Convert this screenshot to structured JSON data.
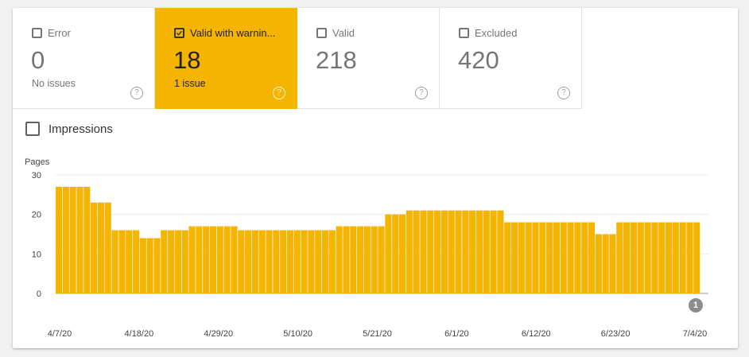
{
  "tiles": [
    {
      "label": "Error",
      "value": "0",
      "sub": "No issues",
      "active": false
    },
    {
      "label": "Valid with warnin...",
      "value": "18",
      "sub": "1 issue",
      "active": true
    },
    {
      "label": "Valid",
      "value": "218",
      "sub": "",
      "active": false
    },
    {
      "label": "Excluded",
      "value": "420",
      "sub": "",
      "active": false
    }
  ],
  "help_glyph": "?",
  "impressions_label": "Impressions",
  "annotation_marker": "1",
  "colors": {
    "accent": "#f4b400",
    "grid": "#ececec",
    "axis": "#9e9e9e"
  },
  "chart_data": {
    "type": "bar",
    "ylabel": "Pages",
    "ylim": [
      0,
      30
    ],
    "yticks": [
      "0",
      "10",
      "20",
      "30"
    ],
    "xticks": [
      "4/7/20",
      "4/18/20",
      "4/29/20",
      "5/10/20",
      "5/21/20",
      "6/1/20",
      "6/12/20",
      "6/23/20",
      "7/4/20"
    ],
    "series": [
      {
        "values": [
          27,
          27,
          27,
          27,
          27,
          23,
          23,
          23,
          16,
          16,
          16,
          16,
          14,
          14,
          14,
          16,
          16,
          16,
          16,
          17,
          17,
          17,
          17,
          17,
          17,
          17,
          16,
          16,
          16,
          16,
          16,
          16,
          16,
          16,
          16,
          16,
          16,
          16,
          16,
          16,
          17,
          17,
          17,
          17,
          17,
          17,
          17,
          20,
          20,
          20,
          21,
          21,
          21,
          21,
          21,
          21,
          21,
          21,
          21,
          21,
          21,
          21,
          21,
          21,
          18,
          18,
          18,
          18,
          18,
          18,
          18,
          18,
          18,
          18,
          18,
          18,
          18,
          15,
          15,
          15,
          18,
          18,
          18,
          18,
          18,
          18,
          18,
          18,
          18,
          18,
          18,
          18
        ]
      }
    ]
  }
}
